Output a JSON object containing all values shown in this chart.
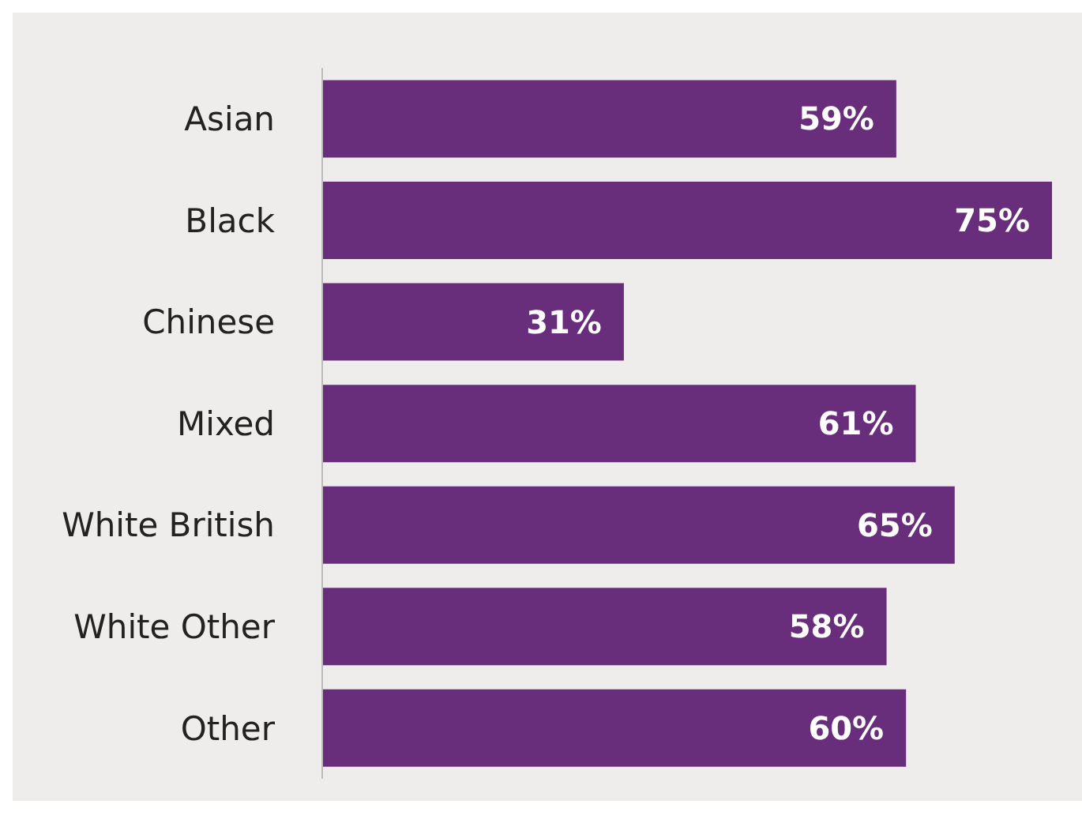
{
  "chart_data": {
    "type": "bar",
    "orientation": "horizontal",
    "categories": [
      "Asian",
      "Black",
      "Chinese",
      "Mixed",
      "White British",
      "White Other",
      "Other"
    ],
    "values": [
      59,
      75,
      31,
      61,
      65,
      58,
      60
    ],
    "value_labels": [
      "59%",
      "75%",
      "31%",
      "61%",
      "65%",
      "58%",
      "60%"
    ],
    "color": "#682d7b",
    "grid": false,
    "legend": false
  }
}
